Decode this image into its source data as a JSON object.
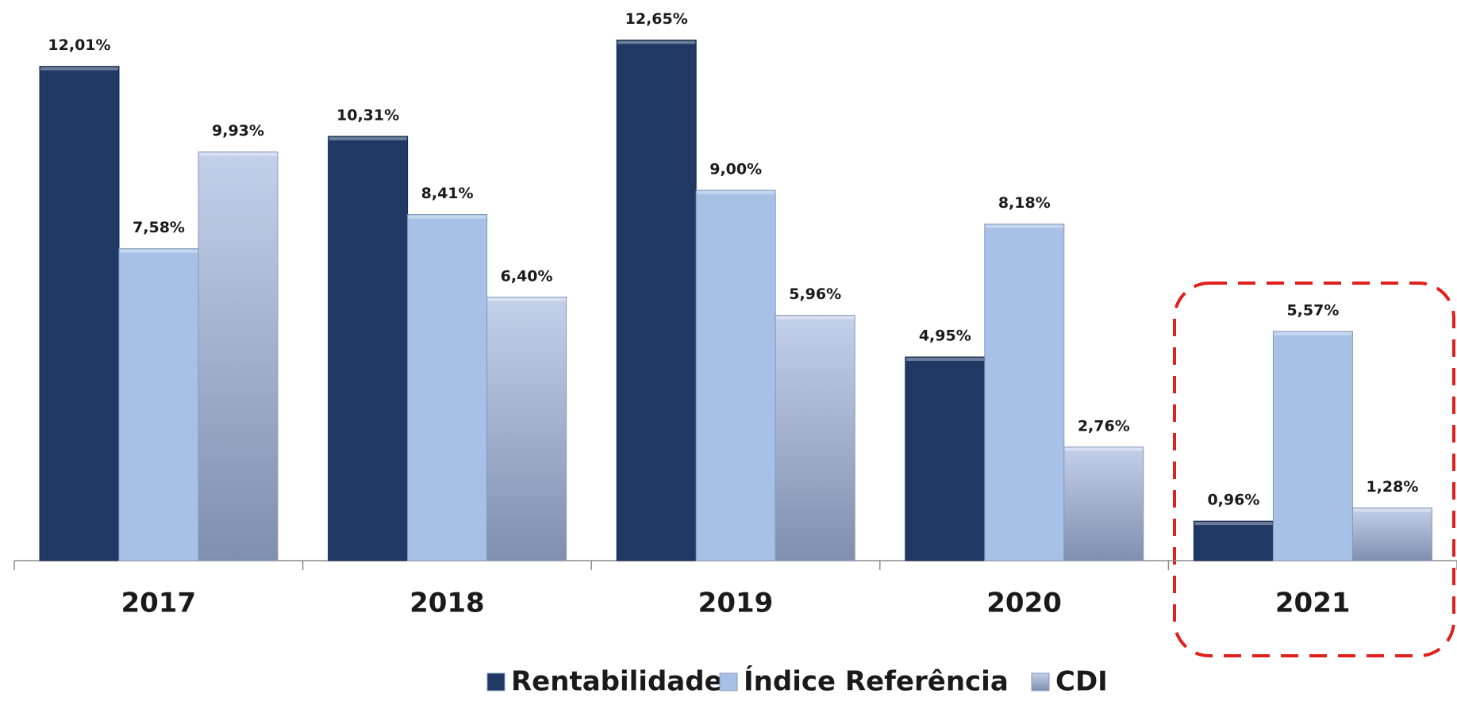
{
  "chart_data": {
    "type": "bar",
    "categories": [
      "2017",
      "2018",
      "2019",
      "2020",
      "2021"
    ],
    "series": [
      {
        "name": "Rentabilidade",
        "color": "#1f3864",
        "values": [
          12.01,
          10.31,
          12.65,
          4.95,
          0.96
        ],
        "value_labels": [
          "12,01%",
          "10,31%",
          "12,65%",
          "4,95%",
          "0,96%"
        ]
      },
      {
        "name": "Índice Referência",
        "color": "#a7c1e6",
        "values": [
          7.58,
          8.41,
          9.0,
          8.18,
          5.57
        ],
        "value_labels": [
          "7,58%",
          "8,41%",
          "9,00%",
          "8,18%",
          "5,57%"
        ]
      },
      {
        "name": "CDI",
        "color": "#9aaacb",
        "values": [
          9.93,
          6.4,
          5.96,
          2.76,
          1.28
        ],
        "value_labels": [
          "9,93%",
          "6,40%",
          "5,96%",
          "2,76%",
          "1,28%"
        ]
      }
    ],
    "legend": "bottom"
  }
}
